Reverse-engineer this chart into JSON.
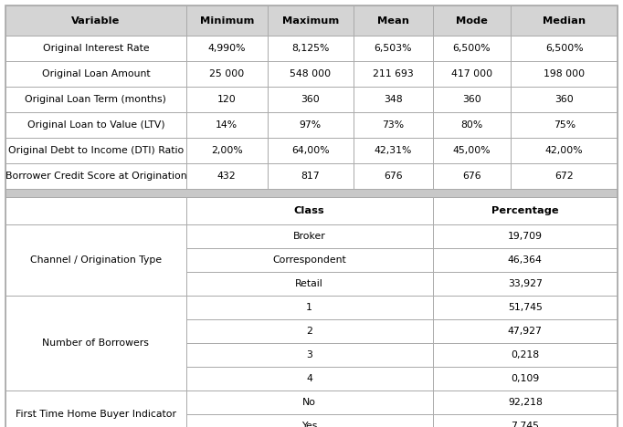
{
  "top_headers": [
    "Variable",
    "Minimum",
    "Maximum",
    "Mean",
    "Mode",
    "Median"
  ],
  "top_rows": [
    [
      "Original Interest Rate",
      "4,990%",
      "8,125%",
      "6,503%",
      "6,500%",
      "6,500%"
    ],
    [
      "Original Loan Amount",
      "25 000",
      "548 000",
      "211 693",
      "417 000",
      "198 000"
    ],
    [
      "Original Loan Term (months)",
      "120",
      "360",
      "348",
      "360",
      "360"
    ],
    [
      "Original Loan to Value (LTV)",
      "14%",
      "97%",
      "73%",
      "80%",
      "75%"
    ],
    [
      "Original Debt to Income (DTI) Ratio",
      "2,00%",
      "64,00%",
      "42,31%",
      "45,00%",
      "42,00%"
    ],
    [
      "Borrower Credit Score at Origination",
      "432",
      "817",
      "676",
      "676",
      "672"
    ]
  ],
  "bottom_sections": [
    {
      "label": "Channel / Origination Type",
      "rows": [
        [
          "Broker",
          "19,709"
        ],
        [
          "Correspondent",
          "46,364"
        ],
        [
          "Retail",
          "33,927"
        ]
      ]
    },
    {
      "label": "Number of Borrowers",
      "rows": [
        [
          "1",
          "51,745"
        ],
        [
          "2",
          "47,927"
        ],
        [
          "3",
          "0,218"
        ],
        [
          "4",
          "0,109"
        ]
      ]
    },
    {
      "label": "First Time Home Buyer Indicator",
      "rows": [
        [
          "No",
          "92,218"
        ],
        [
          "Yes",
          "7,745"
        ]
      ]
    }
  ],
  "header_bg": "#d4d4d4",
  "separator_bg": "#c8c8c8",
  "row_bg": "#ffffff",
  "border_color": "#aaaaaa",
  "font_size": 7.8,
  "bold_font_size": 8.2
}
